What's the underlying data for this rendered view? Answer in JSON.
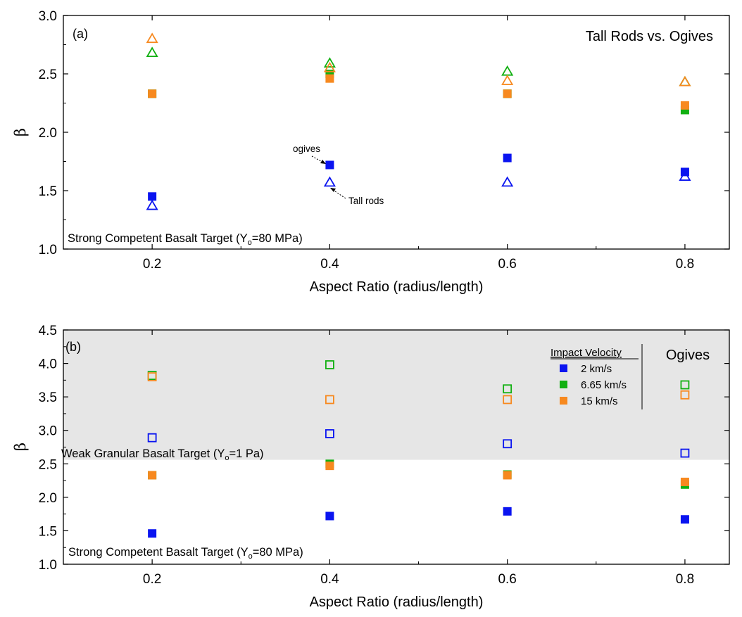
{
  "colors": {
    "blue": "#0a14f0",
    "green": "#12b012",
    "orange": "#f7891f",
    "shade": "#e6e6e6"
  },
  "chart_data": [
    {
      "type": "scatter",
      "panel_label": "(a)",
      "title": "Tall Rods vs. Ogives",
      "xlabel": "Aspect Ratio (radius/length)",
      "ylabel": "β",
      "xlim": [
        0.1,
        0.85
      ],
      "ylim": [
        1.0,
        3.0
      ],
      "xticks": [
        "0.2",
        "0.4",
        "0.6",
        "0.8"
      ],
      "yticks": [
        "1.0",
        "1.5",
        "2.0",
        "2.5",
        "3.0"
      ],
      "note": {
        "prefix": "Strong Competent Basalt Target (Y",
        "sub": "o",
        "suffix": "=80 MPa)"
      },
      "annotations": [
        "ogives",
        "Tall rods"
      ],
      "series": [
        {
          "marker": "square-filled",
          "color": "blue",
          "x": [
            0.2,
            0.4,
            0.6,
            0.8
          ],
          "y": [
            1.45,
            1.72,
            1.78,
            1.66
          ]
        },
        {
          "marker": "square-filled",
          "color": "green",
          "x": [
            0.2,
            0.4,
            0.6,
            0.8
          ],
          "y": [
            2.33,
            2.5,
            2.33,
            2.19
          ]
        },
        {
          "marker": "square-filled",
          "color": "orange",
          "x": [
            0.2,
            0.4,
            0.6,
            0.8
          ],
          "y": [
            2.33,
            2.46,
            2.33,
            2.23
          ]
        },
        {
          "marker": "triangle-open",
          "color": "blue",
          "x": [
            0.2,
            0.4,
            0.6,
            0.8
          ],
          "y": [
            1.37,
            1.57,
            1.57,
            1.62
          ]
        },
        {
          "marker": "triangle-open",
          "color": "green",
          "x": [
            0.2,
            0.4,
            0.6,
            0.8
          ],
          "y": [
            2.68,
            2.59,
            2.52,
            2.43
          ]
        },
        {
          "marker": "triangle-open",
          "color": "orange",
          "x": [
            0.2,
            0.4,
            0.6,
            0.8
          ],
          "y": [
            2.8,
            2.55,
            2.44,
            2.43
          ]
        }
      ]
    },
    {
      "type": "scatter",
      "panel_label": "(b)",
      "title": "Ogives",
      "xlabel": "Aspect Ratio (radius/length)",
      "ylabel": "β",
      "xlim": [
        0.1,
        0.85
      ],
      "ylim": [
        1.0,
        4.5
      ],
      "xticks": [
        "0.2",
        "0.4",
        "0.6",
        "0.8"
      ],
      "yticks": [
        "1.0",
        "1.5",
        "2.0",
        "2.5",
        "3.0",
        "3.5",
        "4.0",
        "4.5"
      ],
      "shaded_region": [
        2.56,
        4.5
      ],
      "note_top": {
        "prefix": "Weak Granular Basalt Target (Y",
        "sub": "o",
        "suffix": "=1 Pa)"
      },
      "note_bottom": {
        "prefix": "Strong Competent Basalt Target (Y",
        "sub": "o",
        "suffix": "=80 MPa)"
      },
      "legend": {
        "title": "Impact Velocity",
        "entries": [
          {
            "label": "2 km/s",
            "color": "blue"
          },
          {
            "label": "6.65 km/s",
            "color": "green"
          },
          {
            "label": "15 km/s",
            "color": "orange"
          }
        ]
      },
      "series": [
        {
          "marker": "square-filled",
          "color": "blue",
          "x": [
            0.2,
            0.4,
            0.6,
            0.8
          ],
          "y": [
            1.46,
            1.72,
            1.79,
            1.67
          ]
        },
        {
          "marker": "square-filled",
          "color": "green",
          "x": [
            0.2,
            0.4,
            0.6,
            0.8
          ],
          "y": [
            2.33,
            2.5,
            2.34,
            2.19
          ]
        },
        {
          "marker": "square-filled",
          "color": "orange",
          "x": [
            0.2,
            0.4,
            0.6,
            0.8
          ],
          "y": [
            2.33,
            2.47,
            2.33,
            2.23
          ]
        },
        {
          "marker": "square-open",
          "color": "blue",
          "x": [
            0.2,
            0.4,
            0.6,
            0.8
          ],
          "y": [
            2.89,
            2.95,
            2.8,
            2.66
          ]
        },
        {
          "marker": "square-open",
          "color": "green",
          "x": [
            0.2,
            0.4,
            0.6,
            0.8
          ],
          "y": [
            3.82,
            3.98,
            3.62,
            3.68
          ]
        },
        {
          "marker": "square-open",
          "color": "orange",
          "x": [
            0.2,
            0.4,
            0.6,
            0.8
          ],
          "y": [
            3.8,
            3.46,
            3.46,
            3.53
          ]
        }
      ]
    }
  ]
}
